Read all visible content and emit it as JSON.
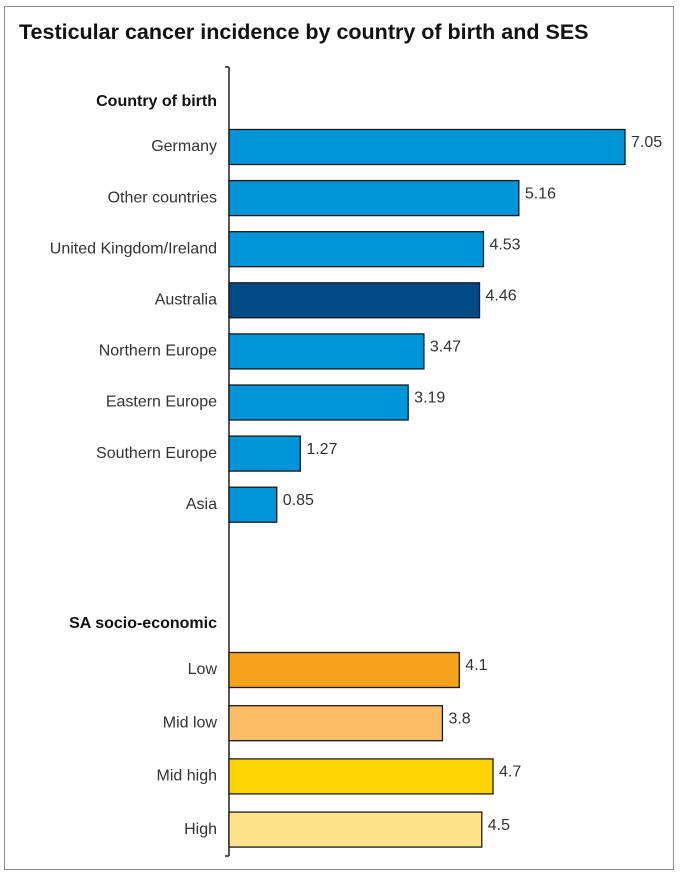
{
  "chart_data": {
    "type": "bar",
    "orientation": "horizontal",
    "title": "Testicular cancer incidence by country of birth and SES",
    "groups": [
      {
        "label": "Country of birth",
        "categories": [
          "Germany",
          "Other countries",
          "United Kingdom/Ireland",
          "Australia",
          "Northern Europe",
          "Eastern Europe",
          "Southern Europe",
          "Asia"
        ],
        "values": [
          7.05,
          5.16,
          4.53,
          4.46,
          3.47,
          3.19,
          1.27,
          0.85
        ],
        "value_labels": [
          "7.05",
          "5.16",
          "4.53",
          "4.46",
          "3.47",
          "3.19",
          "1.27",
          "0.85"
        ],
        "colors": [
          "#0095d9",
          "#0095d9",
          "#0095d9",
          "#004a87",
          "#0095d9",
          "#0095d9",
          "#0095d9",
          "#0095d9"
        ]
      },
      {
        "label": "SA socio-economic",
        "categories": [
          "Low",
          "Mid low",
          "Mid high",
          "High"
        ],
        "values": [
          4.1,
          3.8,
          4.7,
          4.5
        ],
        "value_labels": [
          "4.1",
          "3.8",
          "4.7",
          "4.5"
        ],
        "colors": [
          "#f7a21c",
          "#fbbd66",
          "#ffd400",
          "#ffe38a"
        ]
      }
    ],
    "xlim": [
      0,
      7.05
    ],
    "grid": false,
    "legend": "none"
  }
}
